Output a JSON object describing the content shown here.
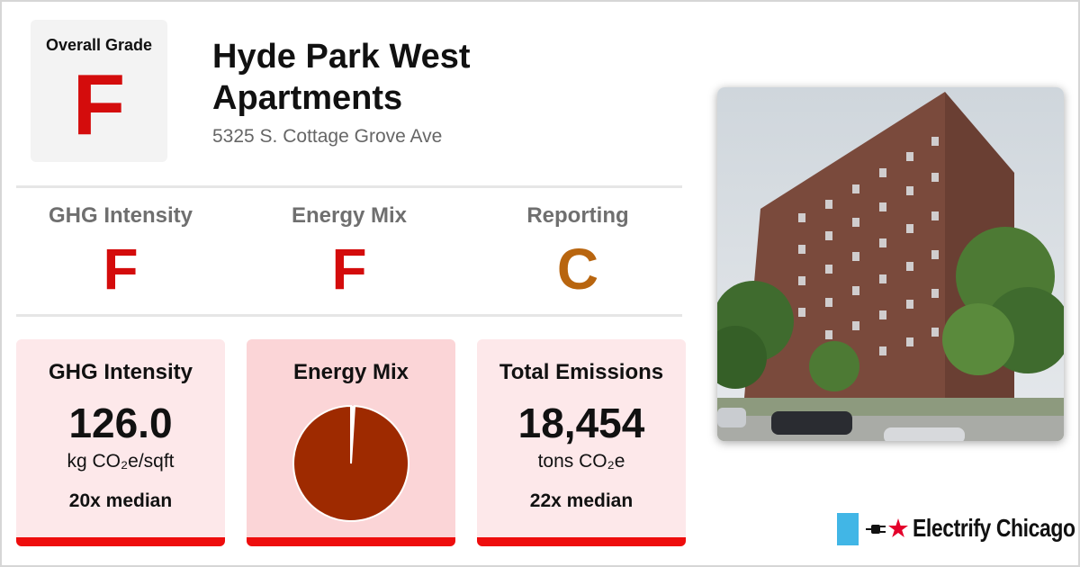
{
  "overall": {
    "label": "Overall Grade",
    "grade": "F",
    "grade_color": "#d40c0c"
  },
  "building": {
    "name": "Hyde Park West Apartments",
    "address": "5325 S. Cottage Grove Ave"
  },
  "grades": [
    {
      "label": "GHG Intensity",
      "grade": "F",
      "color": "#d40c0c"
    },
    {
      "label": "Energy Mix",
      "grade": "F",
      "color": "#d40c0c"
    },
    {
      "label": "Reporting",
      "grade": "C",
      "color": "#b8650f"
    }
  ],
  "cards": {
    "ghg": {
      "title": "GHG Intensity",
      "value": "126.0",
      "unit": "kg CO₂e/sqft",
      "median": "20x median"
    },
    "energy": {
      "title": "Energy Mix",
      "pie_gas_fraction": 0.99,
      "pie_color": "#9e2a00"
    },
    "emissions": {
      "title": "Total Emissions",
      "value": "18,454",
      "unit": "tons CO₂e",
      "median": "22x median"
    }
  },
  "photo": {
    "icon": "building-photo"
  },
  "brand": {
    "text": "Electrify Chicago",
    "flag_color": "#41b6e6",
    "star_color": "#e4002b"
  },
  "colors": {
    "card_bg": "#fde8ea",
    "card_bar": "#ee0d0d"
  }
}
